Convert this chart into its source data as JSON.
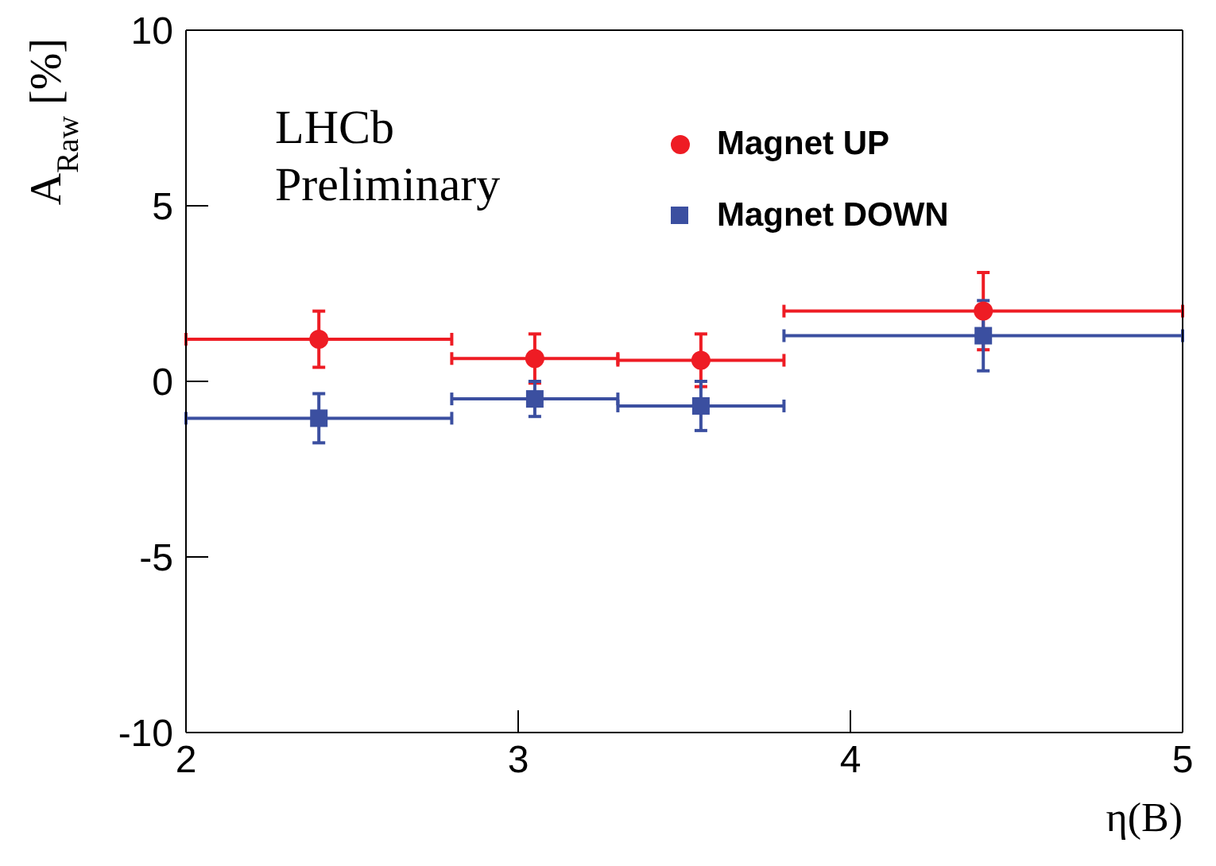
{
  "chart_data": {
    "type": "scatter",
    "xlabel": "η(B)",
    "ylabel": "A$_{Raw}$ [%]",
    "annotations": [
      "LHCb",
      "Preliminary"
    ],
    "x": [
      2.4,
      3.05,
      3.55,
      4.4
    ],
    "series": [
      {
        "name": "Magnet UP",
        "color": "#ee1c24",
        "marker": "circle",
        "values": [
          1.2,
          0.65,
          0.6,
          2.0
        ],
        "errors": [
          0.8,
          0.7,
          0.75,
          1.1
        ],
        "xerrors": [
          0.4,
          0.25,
          0.25,
          0.6
        ]
      },
      {
        "name": "Magnet DOWN",
        "color": "#3b4fa0",
        "marker": "square",
        "values": [
          -1.05,
          -0.5,
          -0.7,
          1.3
        ],
        "errors": [
          0.7,
          0.5,
          0.7,
          1.0
        ],
        "xerrors": [
          0.4,
          0.25,
          0.25,
          0.6
        ]
      }
    ],
    "xlim": [
      2,
      5
    ],
    "xticks": [
      2,
      3,
      4,
      5
    ],
    "ylim": [
      -10,
      10
    ],
    "yticks": [
      -10,
      -5,
      0,
      5,
      10
    ],
    "legend": "top right"
  }
}
